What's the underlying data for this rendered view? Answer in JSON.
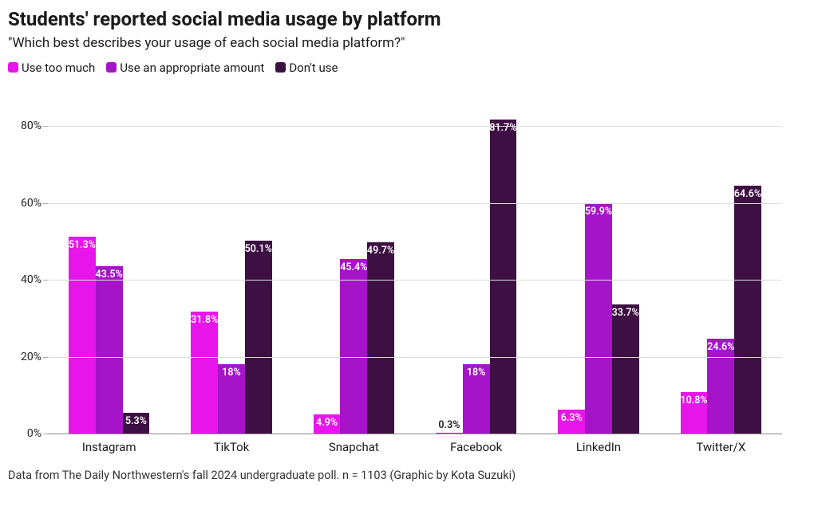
{
  "title": "Students' reported social media usage by platform",
  "subtitle": "\"Which best describes your usage of each social media platform?\"",
  "caption": "Data from The Daily Northwestern's fall 2024 undergraduate poll. n = 1103 (Graphic by Kota Suzuki)",
  "legend": [
    {
      "label": "Use too much",
      "color": "#e815ea"
    },
    {
      "label": "Use an appropriate amount",
      "color": "#a514c9"
    },
    {
      "label": "Don't use",
      "color": "#3d0f42"
    }
  ],
  "chart": {
    "type": "grouped-bar",
    "ylim": [
      0,
      90
    ],
    "ytick_step": 20,
    "ytick_suffix": "%",
    "grid_color": "#dddddd",
    "baseline_color": "#888888",
    "background_color": "#ffffff",
    "bar_width_pct": 22,
    "label_fontsize": 12.5,
    "label_outside_threshold": 3,
    "categories": [
      "Instagram",
      "TikTok",
      "Snapchat",
      "Facebook",
      "LinkedIn",
      "Twitter/X"
    ],
    "series": [
      {
        "name": "Use too much",
        "color": "#e815ea",
        "values": [
          51.3,
          31.8,
          4.9,
          0.3,
          6.3,
          10.8
        ]
      },
      {
        "name": "Use an appropriate amount",
        "color": "#a514c9",
        "values": [
          43.5,
          18,
          45.4,
          18,
          59.9,
          24.6
        ]
      },
      {
        "name": "Don't use",
        "color": "#3d0f42",
        "values": [
          5.3,
          50.1,
          49.7,
          81.7,
          33.7,
          64.6
        ]
      }
    ]
  }
}
